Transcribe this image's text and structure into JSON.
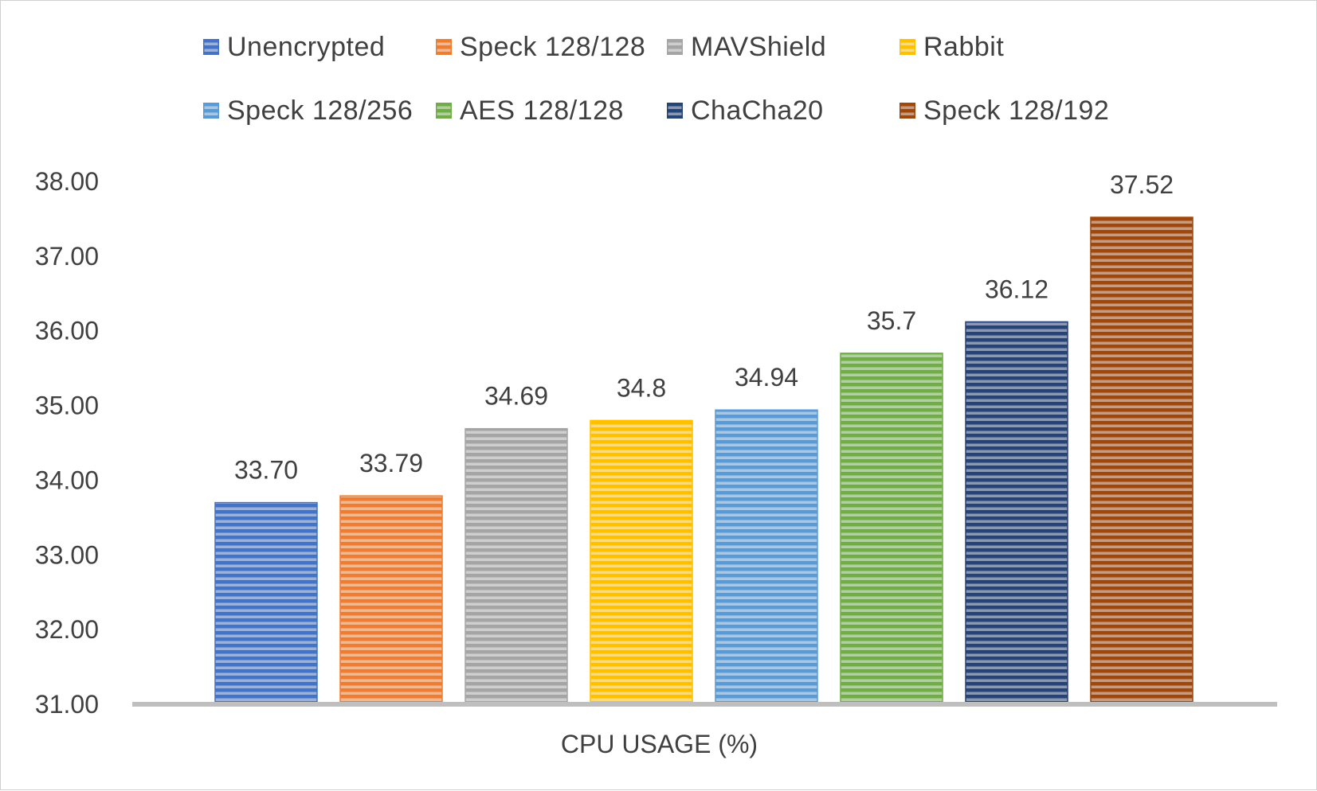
{
  "chart_data": {
    "type": "bar",
    "title": "",
    "xlabel": "CPU USAGE (%)",
    "ylabel": "",
    "ylim": [
      31,
      38
    ],
    "yticks": [
      "31.00",
      "32.00",
      "33.00",
      "34.00",
      "35.00",
      "36.00",
      "37.00",
      "38.00"
    ],
    "grid": false,
    "legend_position": "top",
    "fill_pattern": "horizontal-stripes",
    "series": [
      {
        "name": "Unencrypted",
        "value": 33.7,
        "label": "33.70",
        "color": "#4472C4"
      },
      {
        "name": "Speck 128/128",
        "value": 33.79,
        "label": "33.79",
        "color": "#ED7D31"
      },
      {
        "name": "MAVShield",
        "value": 34.69,
        "label": "34.69",
        "color": "#A5A5A5"
      },
      {
        "name": "Rabbit",
        "value": 34.8,
        "label": "34.8",
        "color": "#FFC000"
      },
      {
        "name": "Speck 128/256",
        "value": 34.94,
        "label": "34.94",
        "color": "#5B9BD5"
      },
      {
        "name": "AES 128/128",
        "value": 35.7,
        "label": "35.7",
        "color": "#70AD47"
      },
      {
        "name": "ChaCha20",
        "value": 36.12,
        "label": "36.12",
        "color": "#264478"
      },
      {
        "name": "Speck 128/192",
        "value": 37.52,
        "label": "37.52",
        "color": "#9E480E"
      }
    ]
  }
}
